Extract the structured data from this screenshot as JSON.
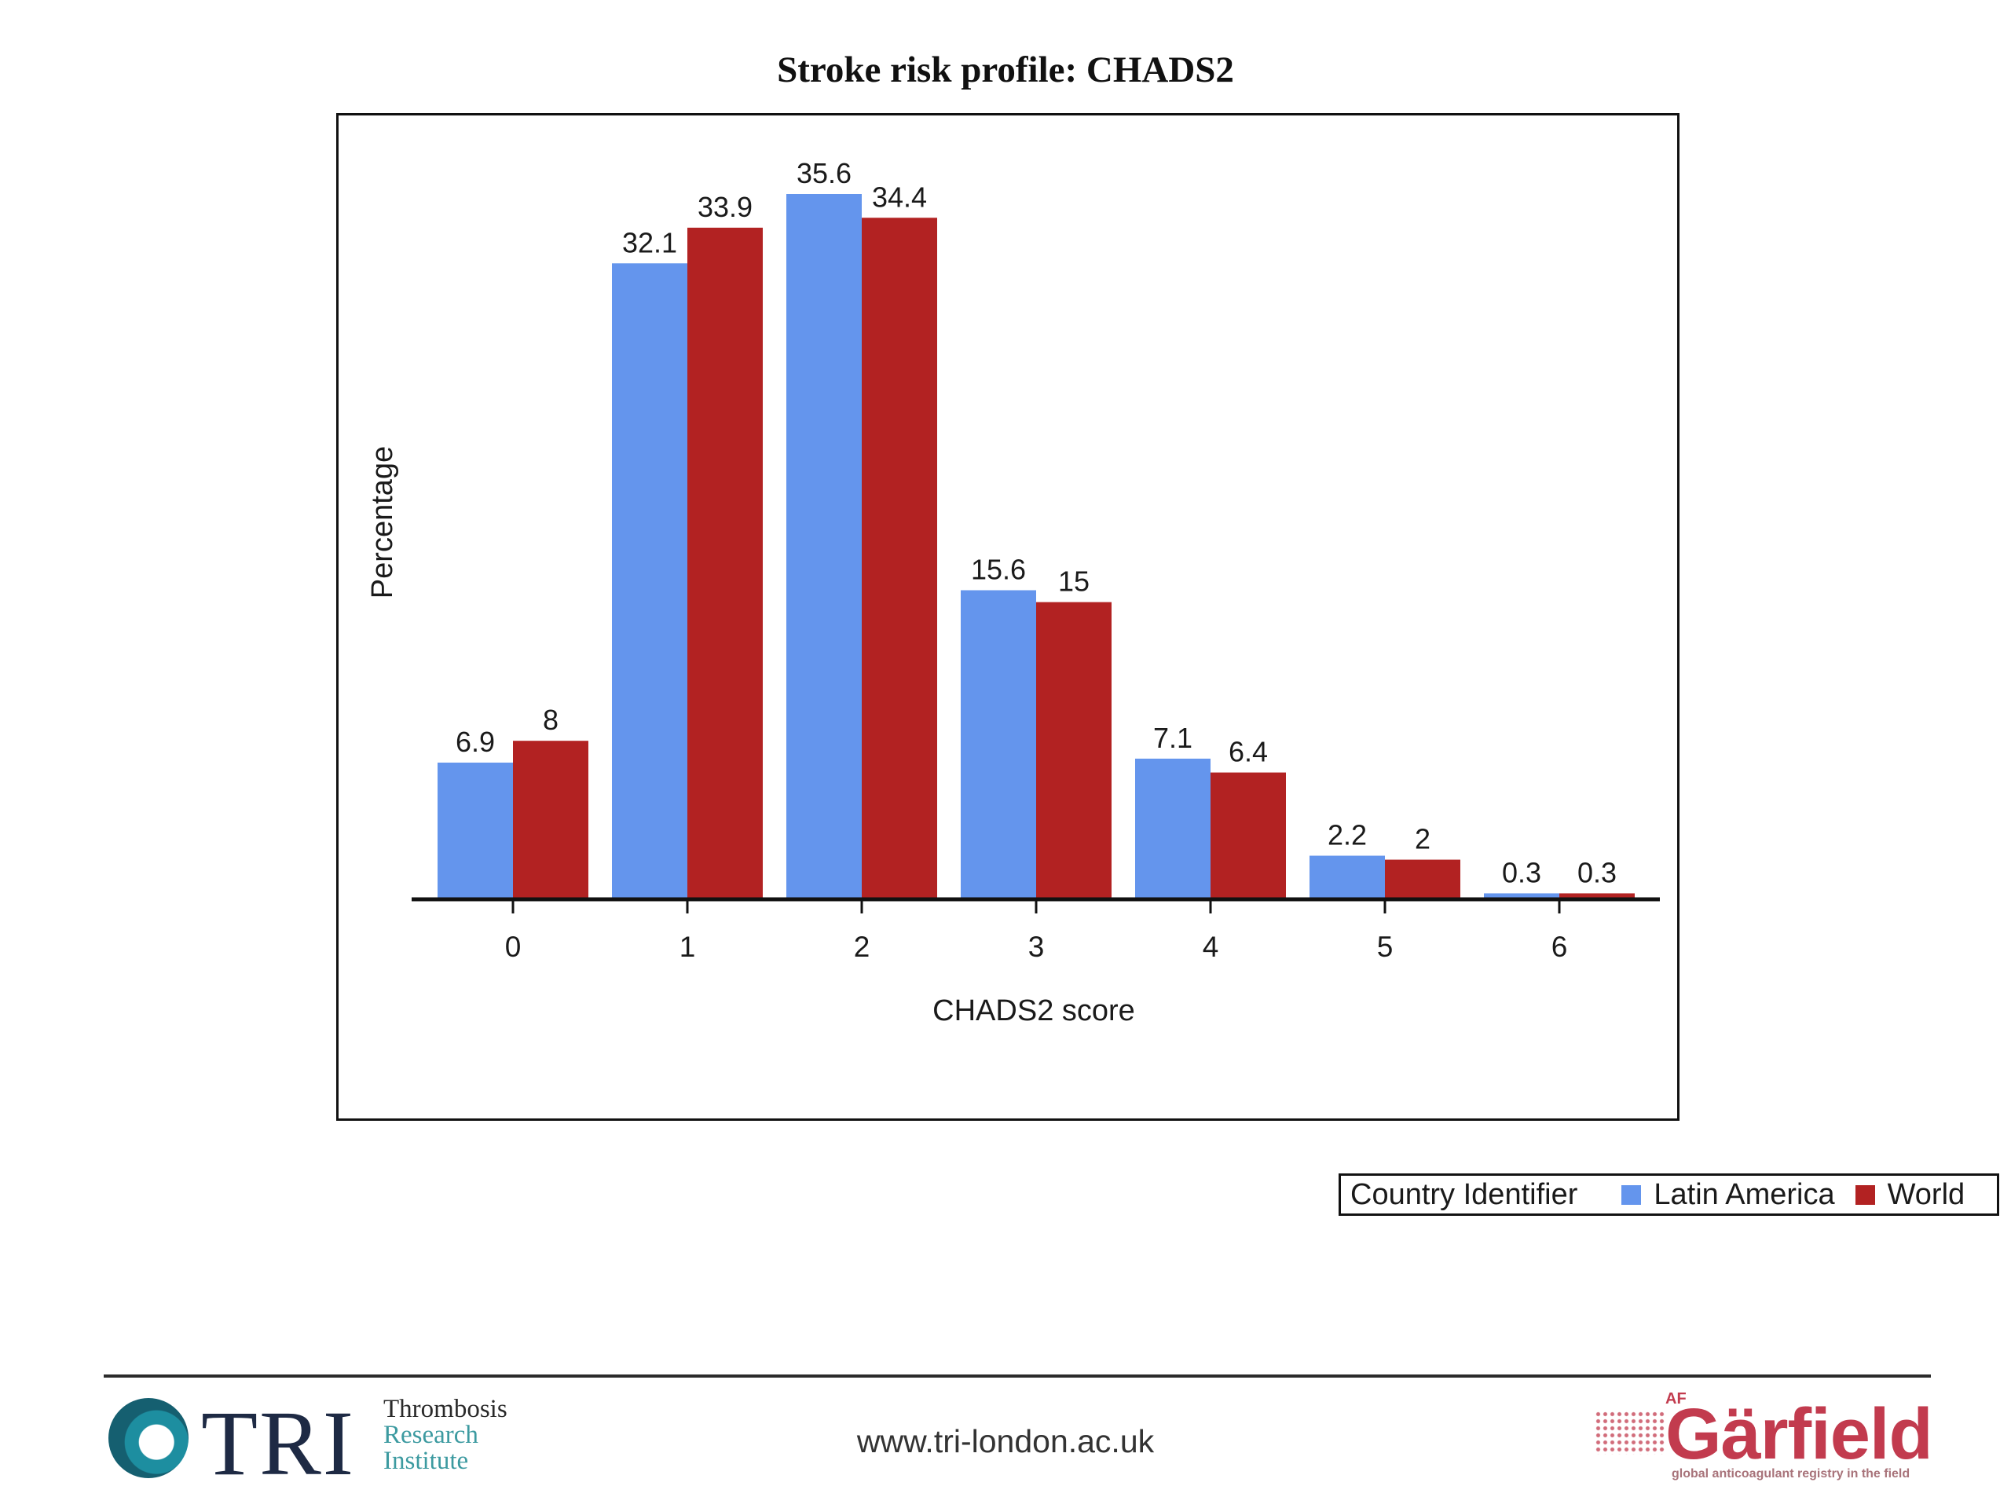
{
  "page": {
    "title": "Stroke risk profile: CHADS2"
  },
  "colors": {
    "latin_america": "#6495ed",
    "world": "#b22222",
    "axis": "#111111"
  },
  "chart_data": {
    "type": "bar",
    "title": "",
    "xlabel": "CHADS2 score",
    "ylabel": "Percentage",
    "categories": [
      "0",
      "1",
      "2",
      "3",
      "4",
      "5",
      "6"
    ],
    "series": [
      {
        "name": "Latin America",
        "values": [
          6.9,
          32.1,
          35.6,
          15.6,
          7.1,
          2.2,
          0.3
        ]
      },
      {
        "name": "World",
        "values": [
          8,
          33.9,
          34.4,
          15,
          6.4,
          2,
          0.3
        ]
      }
    ],
    "ylim": [
      0,
      35.6
    ],
    "grid": false,
    "legend": {
      "title": "Country Identifier",
      "position": "bottom-right"
    }
  },
  "footer": {
    "url": "www.tri-london.ac.uk",
    "tri_logo": {
      "letters": "TRI",
      "line1": "Thrombosis",
      "line2": "Research",
      "line3": "Institute"
    },
    "garfield_logo": {
      "superscript": "AF",
      "word": "Gärfield",
      "tagline": "global anticoagulant registry in the field"
    }
  }
}
